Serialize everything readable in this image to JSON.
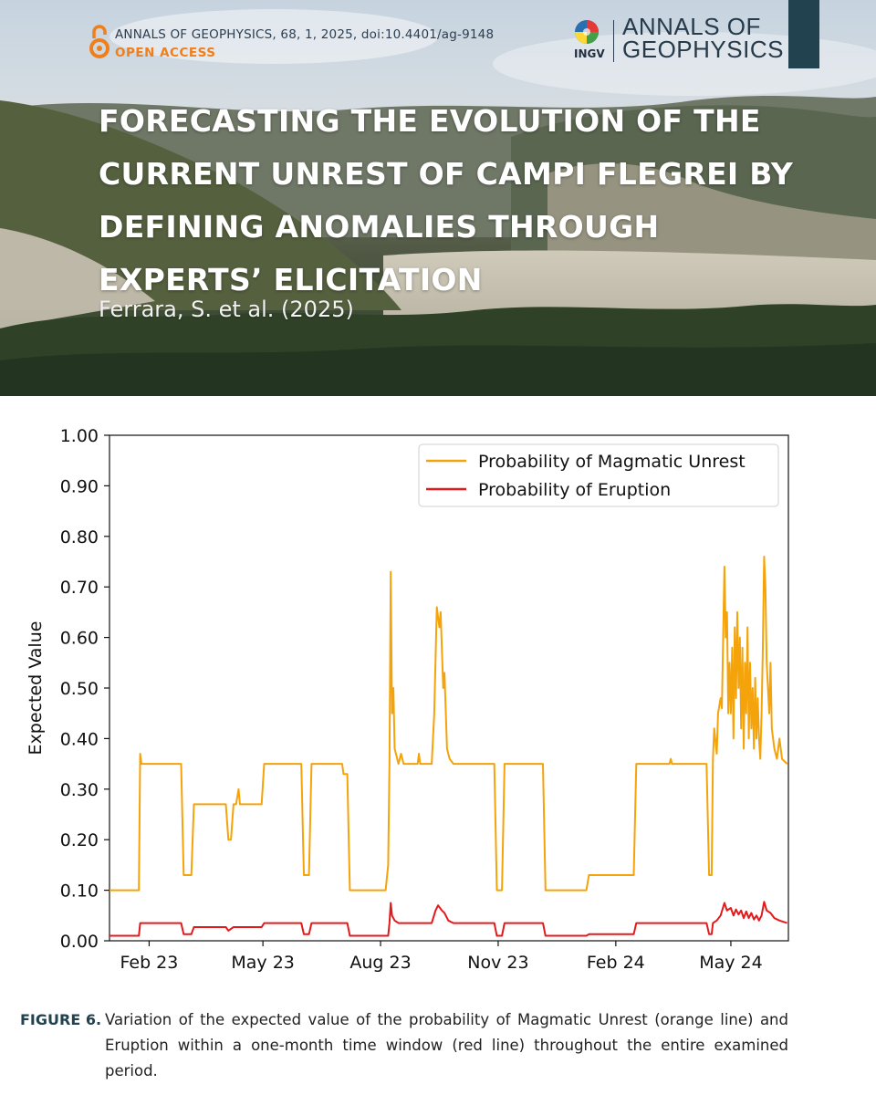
{
  "header": {
    "journal_line": "ANNALS OF GEOPHYSICS, 68, 1, 2025, doi:10.4401/ag-9148",
    "open_access": "OPEN ACCESS",
    "publisher": "INGV",
    "journal_name_line1": "ANNALS OF",
    "journal_name_line2": "GEOPHYSICS"
  },
  "article": {
    "title": "FORECASTING THE EVOLUTION OF THE CURRENT UNREST OF CAMPI FLEGREI BY DEFINING ANOMALIES THROUGH EXPERTS’ ELICITATION",
    "authors": "Ferrara, S. et al. (2025)"
  },
  "colors": {
    "unrest": "#f5a30a",
    "eruption": "#e31a1c",
    "accent": "#23424f",
    "open_access": "#f07e1a"
  },
  "chart_data": {
    "type": "line",
    "ylabel": "Expected Value",
    "xlabel": "",
    "ylim": [
      0,
      1
    ],
    "yticks": [
      "0.00",
      "0.10",
      "0.20",
      "0.30",
      "0.40",
      "0.50",
      "0.60",
      "0.70",
      "0.80",
      "0.90",
      "1.00"
    ],
    "xlim": [
      "2023-01-01",
      "2024-06-15"
    ],
    "xticks": [
      {
        "date": "2023-02-01",
        "label": "Feb 23"
      },
      {
        "date": "2023-05-01",
        "label": "May 23"
      },
      {
        "date": "2023-08-01",
        "label": "Aug 23"
      },
      {
        "date": "2023-11-01",
        "label": "Nov 23"
      },
      {
        "date": "2024-02-01",
        "label": "Feb 24"
      },
      {
        "date": "2024-05-01",
        "label": "May 24"
      }
    ],
    "legend": {
      "placement": "top-right"
    },
    "grid": false,
    "series": [
      {
        "name": "Probability of Magmatic Unrest",
        "color": "orange",
        "points": [
          [
            "2023-01-01",
            0.1
          ],
          [
            "2023-01-24",
            0.1
          ],
          [
            "2023-01-25",
            0.37
          ],
          [
            "2023-01-26",
            0.35
          ],
          [
            "2023-02-26",
            0.35
          ],
          [
            "2023-02-28",
            0.13
          ],
          [
            "2023-03-06",
            0.13
          ],
          [
            "2023-03-08",
            0.27
          ],
          [
            "2023-04-02",
            0.27
          ],
          [
            "2023-04-04",
            0.2
          ],
          [
            "2023-04-06",
            0.2
          ],
          [
            "2023-04-08",
            0.27
          ],
          [
            "2023-04-10",
            0.27
          ],
          [
            "2023-04-12",
            0.3
          ],
          [
            "2023-04-13",
            0.27
          ],
          [
            "2023-04-30",
            0.27
          ],
          [
            "2023-05-02",
            0.35
          ],
          [
            "2023-05-31",
            0.35
          ],
          [
            "2023-06-02",
            0.13
          ],
          [
            "2023-06-06",
            0.13
          ],
          [
            "2023-06-08",
            0.35
          ],
          [
            "2023-07-02",
            0.35
          ],
          [
            "2023-07-03",
            0.33
          ],
          [
            "2023-07-06",
            0.33
          ],
          [
            "2023-07-08",
            0.1
          ],
          [
            "2023-08-05",
            0.1
          ],
          [
            "2023-08-07",
            0.15
          ],
          [
            "2023-08-08",
            0.35
          ],
          [
            "2023-08-09",
            0.73
          ],
          [
            "2023-08-10",
            0.45
          ],
          [
            "2023-08-11",
            0.5
          ],
          [
            "2023-08-12",
            0.38
          ],
          [
            "2023-08-15",
            0.35
          ],
          [
            "2023-08-17",
            0.37
          ],
          [
            "2023-08-19",
            0.35
          ],
          [
            "2023-08-30",
            0.35
          ],
          [
            "2023-08-31",
            0.37
          ],
          [
            "2023-09-01",
            0.35
          ],
          [
            "2023-09-10",
            0.35
          ],
          [
            "2023-09-12",
            0.45
          ],
          [
            "2023-09-14",
            0.66
          ],
          [
            "2023-09-16",
            0.62
          ],
          [
            "2023-09-17",
            0.65
          ],
          [
            "2023-09-19",
            0.5
          ],
          [
            "2023-09-20",
            0.53
          ],
          [
            "2023-09-22",
            0.38
          ],
          [
            "2023-09-24",
            0.36
          ],
          [
            "2023-09-27",
            0.35
          ],
          [
            "2023-10-29",
            0.35
          ],
          [
            "2023-10-31",
            0.1
          ],
          [
            "2023-11-04",
            0.1
          ],
          [
            "2023-11-06",
            0.35
          ],
          [
            "2023-12-06",
            0.35
          ],
          [
            "2023-12-08",
            0.1
          ],
          [
            "2024-01-09",
            0.1
          ],
          [
            "2024-01-11",
            0.13
          ],
          [
            "2024-02-15",
            0.13
          ],
          [
            "2024-02-17",
            0.35
          ],
          [
            "2024-03-14",
            0.35
          ],
          [
            "2024-03-15",
            0.36
          ],
          [
            "2024-03-16",
            0.35
          ],
          [
            "2024-04-12",
            0.35
          ],
          [
            "2024-04-14",
            0.13
          ],
          [
            "2024-04-16",
            0.13
          ],
          [
            "2024-04-17",
            0.36
          ],
          [
            "2024-04-18",
            0.42
          ],
          [
            "2024-04-20",
            0.37
          ],
          [
            "2024-04-21",
            0.45
          ],
          [
            "2024-04-23",
            0.48
          ],
          [
            "2024-04-24",
            0.46
          ],
          [
            "2024-04-26",
            0.74
          ],
          [
            "2024-04-27",
            0.6
          ],
          [
            "2024-04-28",
            0.65
          ],
          [
            "2024-04-29",
            0.45
          ],
          [
            "2024-04-30",
            0.55
          ],
          [
            "2024-05-01",
            0.45
          ],
          [
            "2024-05-02",
            0.58
          ],
          [
            "2024-05-03",
            0.4
          ],
          [
            "2024-05-04",
            0.62
          ],
          [
            "2024-05-05",
            0.48
          ],
          [
            "2024-05-06",
            0.65
          ],
          [
            "2024-05-07",
            0.5
          ],
          [
            "2024-05-08",
            0.6
          ],
          [
            "2024-05-09",
            0.42
          ],
          [
            "2024-05-10",
            0.58
          ],
          [
            "2024-05-11",
            0.38
          ],
          [
            "2024-05-12",
            0.55
          ],
          [
            "2024-05-13",
            0.45
          ],
          [
            "2024-05-14",
            0.62
          ],
          [
            "2024-05-15",
            0.4
          ],
          [
            "2024-05-16",
            0.55
          ],
          [
            "2024-05-17",
            0.42
          ],
          [
            "2024-05-18",
            0.5
          ],
          [
            "2024-05-19",
            0.38
          ],
          [
            "2024-05-20",
            0.52
          ],
          [
            "2024-05-21",
            0.4
          ],
          [
            "2024-05-22",
            0.48
          ],
          [
            "2024-05-23",
            0.4
          ],
          [
            "2024-05-24",
            0.36
          ],
          [
            "2024-05-25",
            0.45
          ],
          [
            "2024-05-26",
            0.58
          ],
          [
            "2024-05-27",
            0.76
          ],
          [
            "2024-05-28",
            0.7
          ],
          [
            "2024-05-29",
            0.55
          ],
          [
            "2024-05-31",
            0.45
          ],
          [
            "2024-06-01",
            0.55
          ],
          [
            "2024-06-02",
            0.42
          ],
          [
            "2024-06-04",
            0.38
          ],
          [
            "2024-06-06",
            0.36
          ],
          [
            "2024-06-08",
            0.4
          ],
          [
            "2024-06-10",
            0.36
          ],
          [
            "2024-06-14",
            0.35
          ]
        ]
      },
      {
        "name": "Probability of Eruption",
        "color": "red",
        "points": [
          [
            "2023-01-01",
            0.01
          ],
          [
            "2023-01-24",
            0.01
          ],
          [
            "2023-01-25",
            0.035
          ],
          [
            "2023-02-26",
            0.035
          ],
          [
            "2023-02-28",
            0.013
          ],
          [
            "2023-03-06",
            0.013
          ],
          [
            "2023-03-08",
            0.027
          ],
          [
            "2023-04-02",
            0.027
          ],
          [
            "2023-04-04",
            0.02
          ],
          [
            "2023-04-08",
            0.027
          ],
          [
            "2023-04-30",
            0.027
          ],
          [
            "2023-05-02",
            0.035
          ],
          [
            "2023-05-31",
            0.035
          ],
          [
            "2023-06-02",
            0.013
          ],
          [
            "2023-06-06",
            0.013
          ],
          [
            "2023-06-08",
            0.035
          ],
          [
            "2023-07-06",
            0.035
          ],
          [
            "2023-07-08",
            0.01
          ],
          [
            "2023-08-07",
            0.01
          ],
          [
            "2023-08-08",
            0.035
          ],
          [
            "2023-08-09",
            0.075
          ],
          [
            "2023-08-10",
            0.05
          ],
          [
            "2023-08-12",
            0.04
          ],
          [
            "2023-08-15",
            0.035
          ],
          [
            "2023-09-10",
            0.035
          ],
          [
            "2023-09-13",
            0.06
          ],
          [
            "2023-09-15",
            0.07
          ],
          [
            "2023-09-18",
            0.06
          ],
          [
            "2023-09-20",
            0.055
          ],
          [
            "2023-09-23",
            0.04
          ],
          [
            "2023-09-27",
            0.035
          ],
          [
            "2023-10-29",
            0.035
          ],
          [
            "2023-10-31",
            0.01
          ],
          [
            "2023-11-04",
            0.01
          ],
          [
            "2023-11-06",
            0.035
          ],
          [
            "2023-12-06",
            0.035
          ],
          [
            "2023-12-08",
            0.01
          ],
          [
            "2024-01-09",
            0.01
          ],
          [
            "2024-01-11",
            0.013
          ],
          [
            "2024-02-15",
            0.013
          ],
          [
            "2024-02-17",
            0.035
          ],
          [
            "2024-04-12",
            0.035
          ],
          [
            "2024-04-14",
            0.013
          ],
          [
            "2024-04-16",
            0.013
          ],
          [
            "2024-04-17",
            0.035
          ],
          [
            "2024-04-20",
            0.04
          ],
          [
            "2024-04-23",
            0.05
          ],
          [
            "2024-04-26",
            0.075
          ],
          [
            "2024-04-28",
            0.06
          ],
          [
            "2024-05-01",
            0.065
          ],
          [
            "2024-05-03",
            0.05
          ],
          [
            "2024-05-05",
            0.062
          ],
          [
            "2024-05-07",
            0.052
          ],
          [
            "2024-05-09",
            0.06
          ],
          [
            "2024-05-11",
            0.045
          ],
          [
            "2024-05-13",
            0.058
          ],
          [
            "2024-05-15",
            0.045
          ],
          [
            "2024-05-17",
            0.055
          ],
          [
            "2024-05-19",
            0.042
          ],
          [
            "2024-05-21",
            0.05
          ],
          [
            "2024-05-23",
            0.04
          ],
          [
            "2024-05-25",
            0.05
          ],
          [
            "2024-05-27",
            0.077
          ],
          [
            "2024-05-29",
            0.06
          ],
          [
            "2024-06-01",
            0.055
          ],
          [
            "2024-06-04",
            0.045
          ],
          [
            "2024-06-08",
            0.04
          ],
          [
            "2024-06-14",
            0.035
          ]
        ]
      }
    ]
  },
  "caption": {
    "label": "FIGURE 6.",
    "text": "Variation of the expected value of the probability of Magmatic Unrest (orange line) and Eruption within a one-month time window (red line) throughout the entire examined period."
  }
}
